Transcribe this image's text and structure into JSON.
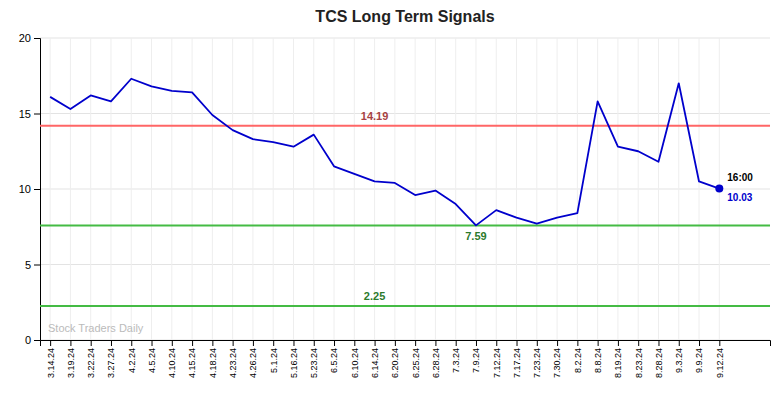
{
  "chart_data": {
    "type": "line",
    "title": "TCS Long Term Signals",
    "categories": [
      "3.14.24",
      "3.19.24",
      "3.22.24",
      "3.27.24",
      "4.2.24",
      "4.5.24",
      "4.10.24",
      "4.15.24",
      "4.18.24",
      "4.23.24",
      "4.26.24",
      "5.1.24",
      "5.16.24",
      "5.23.24",
      "6.5.24",
      "6.10.24",
      "6.14.24",
      "6.20.24",
      "6.25.24",
      "6.28.24",
      "7.3.24",
      "7.9.24",
      "7.12.24",
      "7.17.24",
      "7.23.24",
      "7.30.24",
      "8.2.24",
      "8.8.24",
      "8.19.24",
      "8.23.24",
      "8.28.24",
      "9.3.24",
      "9.9.24",
      "9.12.24"
    ],
    "values": [
      16.1,
      15.3,
      16.2,
      15.8,
      17.3,
      16.8,
      16.5,
      16.4,
      14.9,
      13.9,
      13.3,
      13.1,
      12.8,
      13.6,
      11.5,
      11.0,
      10.5,
      10.4,
      9.6,
      9.9,
      9.0,
      7.59,
      8.6,
      8.1,
      7.7,
      8.1,
      8.4,
      15.8,
      12.8,
      12.5,
      11.8,
      17.0,
      10.5,
      10.03
    ],
    "color": "#0000cc",
    "hlines": [
      {
        "value": 14.19,
        "color": "#ff6666"
      },
      {
        "value": 7.59,
        "color": "#44bb44"
      },
      {
        "value": 2.25,
        "color": "#44bb44"
      }
    ],
    "annotations": [
      "16:00"
    ],
    "watermark": "Stock Traders Daily",
    "ylim": [
      0,
      20
    ],
    "yticks": [
      0,
      5,
      10,
      15,
      20
    ],
    "grid": true
  }
}
